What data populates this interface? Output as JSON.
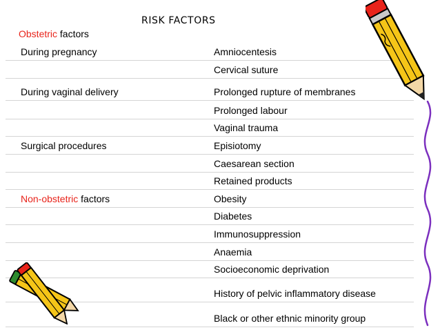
{
  "title": "RISK FACTORS",
  "obstetric_heading": {
    "accent": "Obstetric",
    "rest": " factors"
  },
  "rows": [
    {
      "left": "During pregnancy",
      "right": "Amniocentesis"
    },
    {
      "left": "",
      "right": "Cervical suture"
    },
    {
      "left": "During vaginal delivery",
      "right": "Prolonged rupture of membranes"
    },
    {
      "left": "",
      "right": "Prolonged labour"
    },
    {
      "left": "",
      "right": "Vaginal trauma"
    },
    {
      "left": "Surgical procedures",
      "right": "Episiotomy"
    },
    {
      "left": "",
      "right": "Caesarean section"
    },
    {
      "left": "",
      "right": "Retained products"
    },
    {
      "left_accent": "Non-obstetric",
      "left": " factors",
      "right": "Obesity"
    },
    {
      "left": "",
      "right": "Diabetes"
    },
    {
      "left": "",
      "right": "Immunosuppression"
    },
    {
      "left": "",
      "right": "Anaemia"
    },
    {
      "left": "",
      "right": "Socioeconomic deprivation"
    },
    {
      "left": "",
      "right": "History of pelvic inflammatory disease"
    },
    {
      "left": "",
      "right": "Black or other ethnic minority group"
    }
  ],
  "decorations": [
    "pencil-icon",
    "pencils-icon",
    "wavy-line"
  ],
  "colors": {
    "accent": "#e8231a",
    "pencil_body": "#f5c518",
    "pencil_outline": "#000000",
    "wavy_line": "#7b2fbe"
  }
}
